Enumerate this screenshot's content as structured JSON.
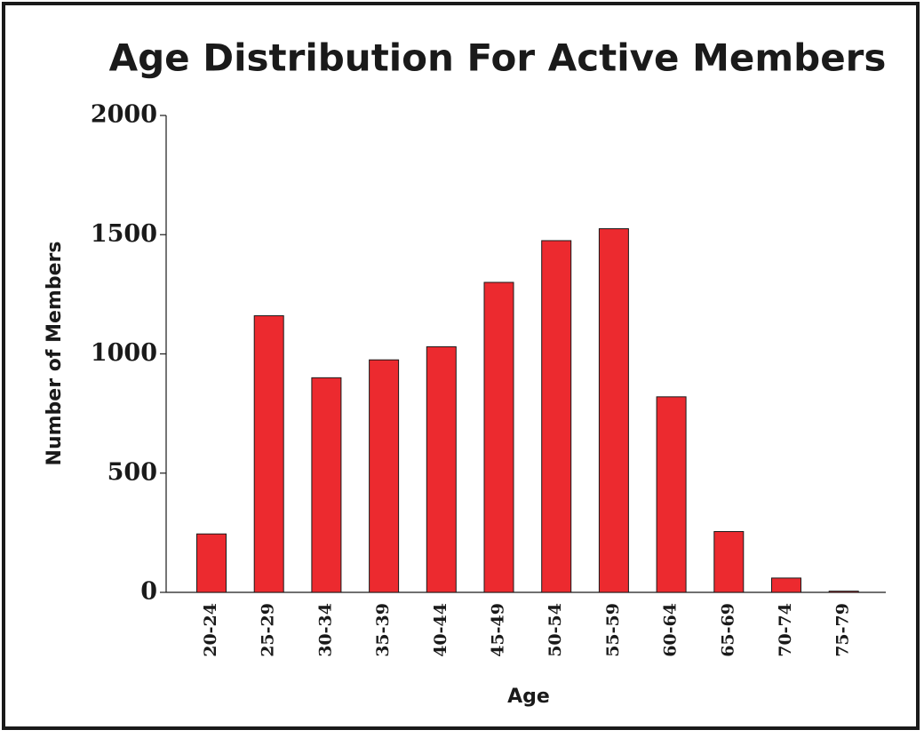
{
  "chart_data": {
    "type": "bar",
    "title": "Age Distribution For Active Members",
    "xlabel": "Age",
    "ylabel": "Number of Members",
    "categories": [
      "20-24",
      "25-29",
      "30-34",
      "35-39",
      "40-44",
      "45-49",
      "50-54",
      "55-59",
      "60-64",
      "65-69",
      "70-74",
      "75-79"
    ],
    "values": [
      245,
      1160,
      900,
      975,
      1030,
      1300,
      1475,
      1525,
      820,
      255,
      60,
      5
    ],
    "color": "#ec2a2f",
    "ylim": [
      0,
      2000
    ],
    "yticks": [
      0,
      500,
      1000,
      1500,
      2000
    ],
    "grid": false
  }
}
